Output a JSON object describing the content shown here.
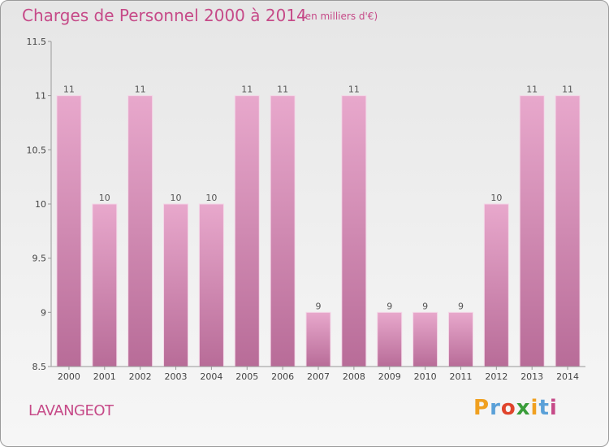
{
  "header": {
    "title": "Charges de Personnel 2000 à 2014",
    "subtitle": "(en milliers d'€)"
  },
  "footer": {
    "commune": "LAVANGEOT",
    "brand": [
      "P",
      "r",
      "o",
      "x",
      "i",
      "t",
      "i"
    ],
    "brand_colors": [
      "#f0a020",
      "#5aa0d8",
      "#e0442c",
      "#3a9d3a",
      "#f0a020",
      "#5aa0d8",
      "#c64a88"
    ]
  },
  "chart_data": {
    "type": "bar",
    "categories": [
      "2000",
      "2001",
      "2002",
      "2003",
      "2004",
      "2005",
      "2006",
      "2007",
      "2008",
      "2009",
      "2010",
      "2011",
      "2012",
      "2013",
      "2014"
    ],
    "values": [
      11,
      10,
      11,
      10,
      10,
      11,
      11,
      9,
      11,
      9,
      9,
      9,
      10,
      11,
      11
    ],
    "value_labels": [
      "11",
      "10",
      "11",
      "10",
      "10",
      "11",
      "11",
      "9",
      "11",
      "9",
      "9",
      "9",
      "10",
      "11",
      "11"
    ],
    "yticks": [
      8.5,
      9,
      9.5,
      10,
      10.5,
      11,
      11.5
    ],
    "ytick_labels": [
      "8.5",
      "9",
      "9.5",
      "10",
      "10.5",
      "11",
      "11.5"
    ],
    "ylim": [
      8.5,
      11.5
    ],
    "bar_color": "#d889b4",
    "grid": false,
    "legend": "none"
  }
}
